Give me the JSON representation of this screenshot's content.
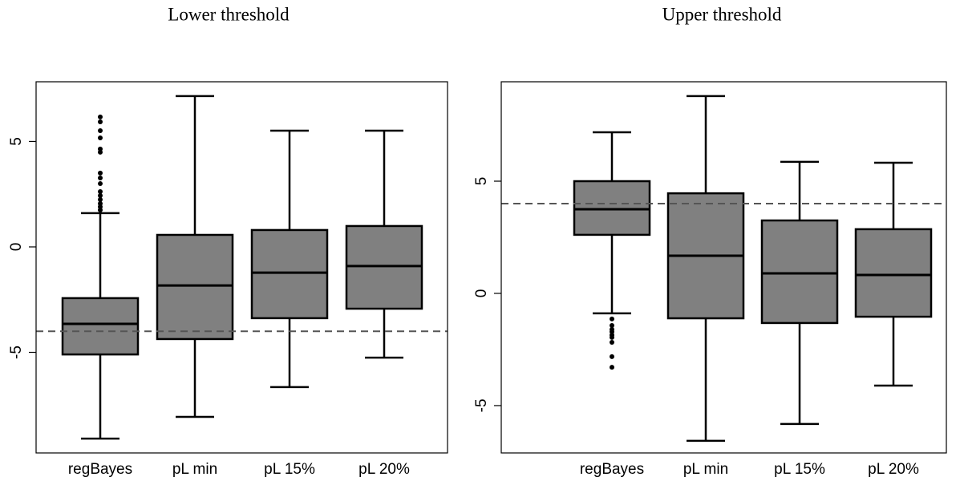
{
  "chart_data": [
    {
      "type": "boxplot",
      "title": "Lower threshold",
      "color": "#808080",
      "categories": [
        "regBayes",
        "pL min",
        "pL 15%",
        "pL 20%"
      ],
      "boxes": [
        {
          "whisker_low": -9.09,
          "q1": -5.1,
          "median": -3.65,
          "q3": -2.43,
          "whisker_high": 1.6,
          "outliers": [
            6.16,
            5.93,
            5.51,
            5.17,
            4.64,
            4.49,
            3.5,
            3.27,
            3.0,
            2.62,
            2.43,
            2.24,
            2.05,
            1.9,
            1.75
          ]
        },
        {
          "whisker_low": -8.06,
          "q1": -4.37,
          "median": -1.83,
          "q3": 0.57,
          "whisker_high": 7.15,
          "outliers": []
        },
        {
          "whisker_low": -6.65,
          "q1": -3.38,
          "median": -1.22,
          "q3": 0.8,
          "whisker_high": 5.51,
          "outliers": []
        },
        {
          "whisker_low": -5.25,
          "q1": -2.93,
          "median": -0.91,
          "q3": 0.99,
          "whisker_high": 5.51,
          "outliers": []
        }
      ],
      "reference_line": -4,
      "ylim": [
        -9.77,
        7.83
      ],
      "yticks": [
        -5,
        0,
        5
      ]
    },
    {
      "type": "boxplot",
      "title": "Upper threshold",
      "color": "#808080",
      "categories": [
        "regBayes",
        "pL min",
        "pL 15%",
        "pL 20%"
      ],
      "boxes": [
        {
          "whisker_low": -0.89,
          "q1": 2.61,
          "median": 3.75,
          "q3": 5.0,
          "whisker_high": 7.18,
          "outliers": [
            -1.14,
            -1.43,
            -1.61,
            -1.71,
            -1.86,
            -1.96,
            -2.18,
            -2.82,
            -3.29
          ]
        },
        {
          "whisker_low": -6.57,
          "q1": -1.11,
          "median": 1.68,
          "q3": 4.46,
          "whisker_high": 8.79,
          "outliers": []
        },
        {
          "whisker_low": -5.82,
          "q1": -1.32,
          "median": 0.89,
          "q3": 3.25,
          "whisker_high": 5.86,
          "outliers": []
        },
        {
          "whisker_low": -4.11,
          "q1": -1.04,
          "median": 0.82,
          "q3": 2.86,
          "whisker_high": 5.82,
          "outliers": []
        }
      ],
      "reference_line": 4,
      "ylim": [
        -7.11,
        9.43
      ],
      "yticks": [
        -5,
        0,
        5
      ]
    }
  ]
}
